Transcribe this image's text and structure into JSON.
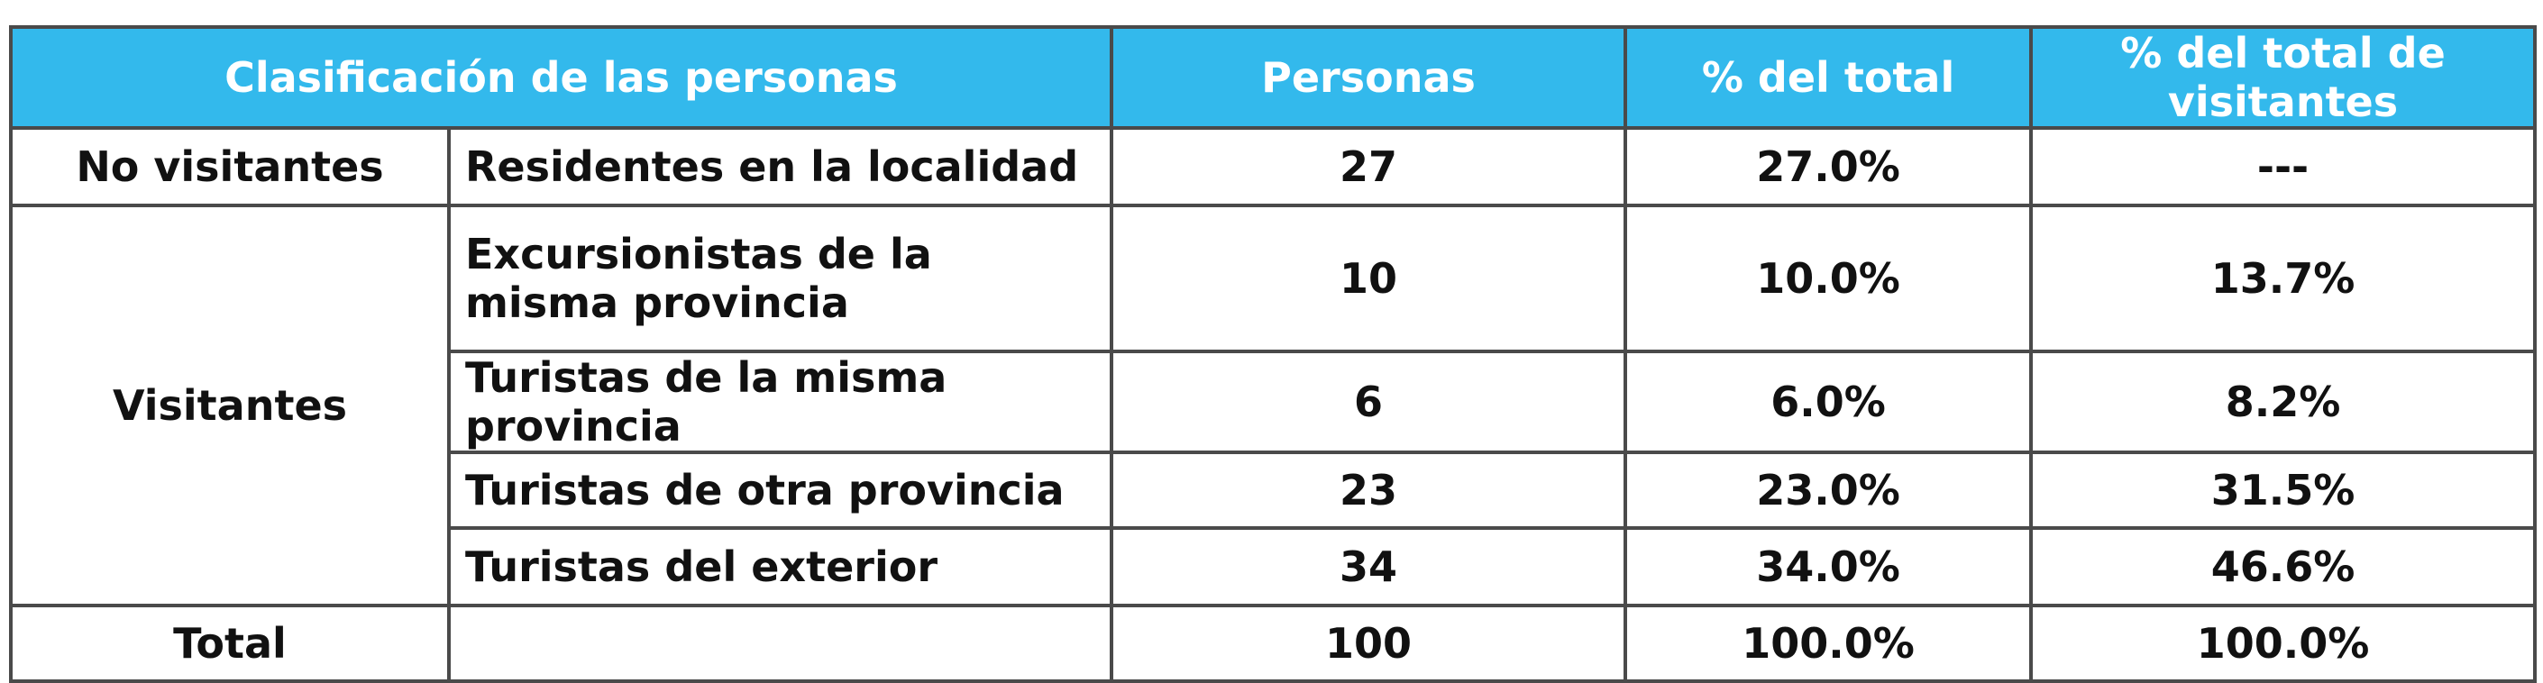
{
  "table": {
    "headers": {
      "classification": "Clasificación de las personas",
      "persons": "Personas",
      "pct_total": "% del total",
      "pct_visitors": "% del total de visitantes"
    },
    "groups": {
      "non_visitors": "No visitantes",
      "visitors": "Visitantes"
    },
    "rows": [
      {
        "label": "Residentes en la localidad",
        "persons": "27",
        "pct_total": "27.0%",
        "pct_visitors": "---"
      },
      {
        "label": "Excursionistas de la misma provincia",
        "persons": "10",
        "pct_total": "10.0%",
        "pct_visitors": "13.7%"
      },
      {
        "label": "Turistas de la misma provincia",
        "persons": "6",
        "pct_total": "6.0%",
        "pct_visitors": "8.2%"
      },
      {
        "label": "Turistas de otra provincia",
        "persons": "23",
        "pct_total": "23.0%",
        "pct_visitors": "31.5%"
      },
      {
        "label": "Turistas del exterior",
        "persons": "34",
        "pct_total": "34.0%",
        "pct_visitors": "46.6%"
      }
    ],
    "total": {
      "label": "Total",
      "persons": "100",
      "pct_total": "100.0%",
      "pct_visitors": "100.0%"
    },
    "colors": {
      "header_bg": "#33b9ec",
      "header_text": "#ffffff",
      "border": "#4a4a4a"
    }
  }
}
